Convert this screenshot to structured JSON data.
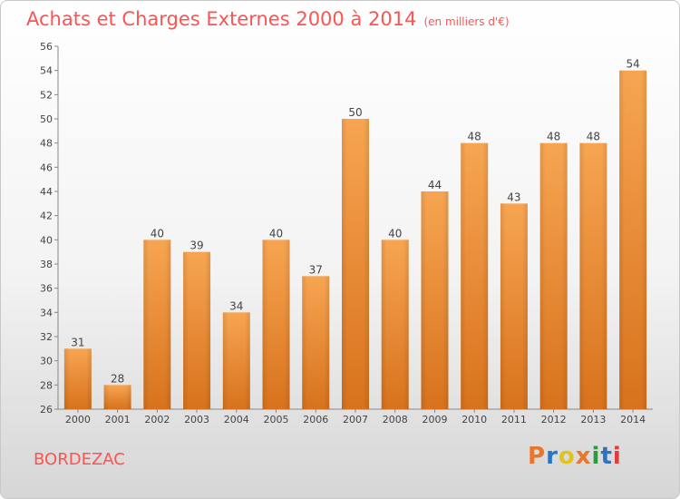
{
  "header": {
    "title": "Achats et Charges Externes 2000 à 2014",
    "subtitle": "(en milliers d'€)"
  },
  "footer": {
    "city": "BORDEZAC",
    "brand": "Proxiti"
  },
  "colors": {
    "title": "#ff5252",
    "bar_light": "#f7a552",
    "bar_dark": "#d8721c",
    "brand_letters": [
      "#e8762b",
      "#2b74c4",
      "#e0c31b",
      "#e8762b",
      "#2b9b3f",
      "#2b74c4",
      "#e03c3c"
    ]
  },
  "chart_data": {
    "type": "bar",
    "title": "Achats et Charges Externes 2000 à 2014",
    "subtitle": "(en milliers d'€)",
    "xlabel": "",
    "ylabel": "",
    "categories": [
      "2000",
      "2001",
      "2002",
      "2003",
      "2004",
      "2005",
      "2006",
      "2007",
      "2008",
      "2009",
      "2010",
      "2011",
      "2012",
      "2013",
      "2014"
    ],
    "values": [
      31,
      28,
      40,
      39,
      34,
      40,
      37,
      50,
      40,
      44,
      48,
      43,
      48,
      48,
      54
    ],
    "ylim": [
      26,
      56
    ],
    "yticks": [
      26,
      28,
      30,
      32,
      34,
      36,
      38,
      40,
      42,
      44,
      46,
      48,
      50,
      52,
      54,
      56
    ],
    "grid": false,
    "data_labels": true
  }
}
